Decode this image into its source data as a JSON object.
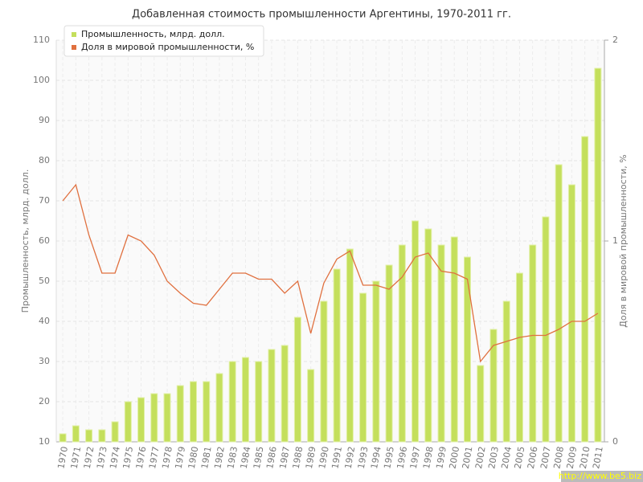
{
  "chart_data": {
    "type": "bar_line",
    "title": "Добавленная стоимость промышленности Аргентины, 1970-2011 гг.",
    "ylabel": "Промышленность, млрд. долл.",
    "y2label": "Доля в мировой промышленности, %",
    "watermark": "http://www.be5.biz",
    "categories": [
      "1970",
      "1971",
      "1972",
      "1973",
      "1974",
      "1975",
      "1976",
      "1977",
      "1978",
      "1979",
      "1980",
      "1981",
      "1982",
      "1983",
      "1984",
      "1985",
      "1986",
      "1987",
      "1988",
      "1989",
      "1990",
      "1991",
      "1992",
      "1993",
      "1994",
      "1995",
      "1996",
      "1997",
      "1998",
      "1999",
      "2000",
      "2001",
      "2002",
      "2003",
      "2004",
      "2005",
      "2006",
      "2007",
      "2008",
      "2009",
      "2010",
      "2011"
    ],
    "series": [
      {
        "name": "Промышленность, млрд. долл.",
        "color": "#c4df5c",
        "kind": "bar",
        "values": [
          12,
          14,
          13,
          13,
          15,
          20,
          21,
          22,
          22,
          24,
          25,
          25,
          27,
          30,
          31,
          30,
          33,
          34,
          41,
          28,
          45,
          53,
          58,
          47,
          50,
          54,
          59,
          65,
          63,
          59,
          61,
          56,
          29,
          38,
          45,
          52,
          59,
          66,
          79,
          74,
          86,
          103
        ]
      },
      {
        "name": "Доля в мировой промышленности, %",
        "color": "#e0703f",
        "kind": "line",
        "axis": "y2",
        "values": [
          1.2,
          1.28,
          1.03,
          0.84,
          0.84,
          1.03,
          1.0,
          0.93,
          0.8,
          0.74,
          0.69,
          0.68,
          0.76,
          0.84,
          0.84,
          0.81,
          0.81,
          0.74,
          0.8,
          0.54,
          0.79,
          0.91,
          0.95,
          0.78,
          0.78,
          0.76,
          0.82,
          0.92,
          0.94,
          0.85,
          0.84,
          0.81,
          0.4,
          0.48,
          0.5,
          0.52,
          0.53,
          0.53,
          0.56,
          0.6,
          0.6,
          0.64
        ]
      }
    ],
    "ylim": [
      10,
      110
    ],
    "yticks": [
      10,
      20,
      30,
      40,
      50,
      60,
      70,
      80,
      90,
      100,
      110
    ],
    "y2lim": [
      0,
      2
    ],
    "y2ticks": [
      0,
      1,
      2
    ],
    "grid": true,
    "legend": "top-left"
  }
}
